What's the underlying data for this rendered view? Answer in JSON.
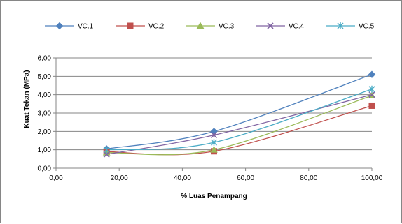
{
  "chart_data": {
    "type": "line",
    "title": "",
    "xlabel": "% Luas Penampang",
    "ylabel": "Kuat Tekan (MPa)",
    "xlim": [
      0,
      100
    ],
    "ylim": [
      0,
      6
    ],
    "x_ticks": [
      "0,00",
      "20,00",
      "40,00",
      "60,00",
      "80,00",
      "100,00"
    ],
    "y_ticks": [
      "0,00",
      "1,00",
      "2,00",
      "3,00",
      "4,00",
      "5,00",
      "6,00"
    ],
    "grid": "horizontal",
    "legend_position": "top",
    "smooth": true,
    "series": [
      {
        "name": "VC.1",
        "color": "#4F81BD",
        "marker": "diamond",
        "x": [
          16,
          50,
          100
        ],
        "y": [
          1.05,
          2.0,
          5.1
        ]
      },
      {
        "name": "VC.2",
        "color": "#C0504D",
        "marker": "square",
        "x": [
          16,
          50,
          100
        ],
        "y": [
          0.9,
          0.92,
          3.4
        ]
      },
      {
        "name": "VC.3",
        "color": "#9BBB59",
        "marker": "triangle",
        "x": [
          16,
          50,
          100
        ],
        "y": [
          0.85,
          1.0,
          3.95
        ]
      },
      {
        "name": "VC.4",
        "color": "#8064A2",
        "marker": "x",
        "x": [
          16,
          50,
          100
        ],
        "y": [
          0.75,
          1.8,
          4.0
        ]
      },
      {
        "name": "VC.5",
        "color": "#4BACC6",
        "marker": "star",
        "x": [
          16,
          50,
          100
        ],
        "y": [
          1.0,
          1.4,
          4.3
        ]
      }
    ]
  }
}
